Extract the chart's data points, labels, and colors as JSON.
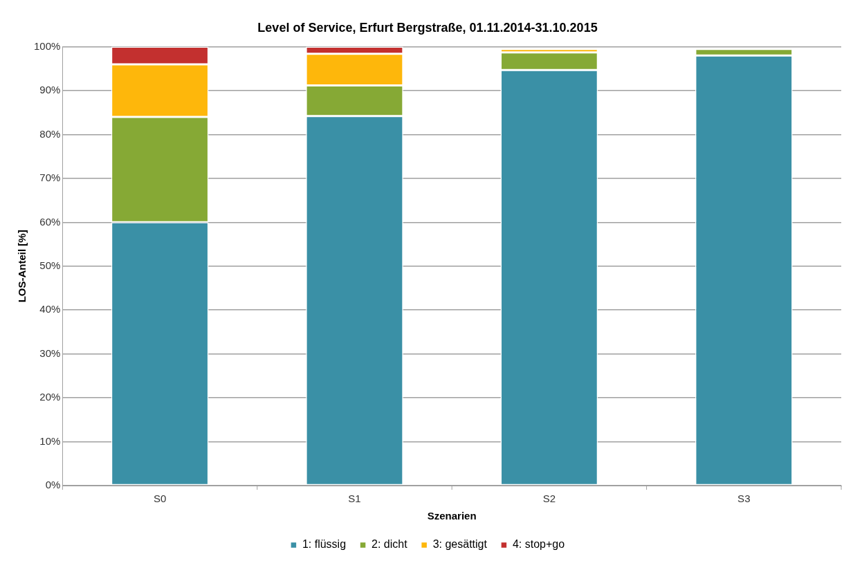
{
  "chart_data": {
    "type": "bar",
    "title": "Level of Service, Erfurt Bergstraße, 01.11.2014-31.10.2015",
    "xlabel": "Szenarien",
    "ylabel": "LOS-Anteil [%]",
    "categories": [
      "S0",
      "S1",
      "S2",
      "S3"
    ],
    "stacked": true,
    "series": [
      {
        "name": "1: flüssig",
        "color": "#3a90a6",
        "values": [
          60,
          84.2,
          94.7,
          98
        ]
      },
      {
        "name": "2: dicht",
        "color": "#86a935",
        "values": [
          24,
          7,
          4,
          1.5
        ]
      },
      {
        "name": "3: gesättigt",
        "color": "#feb70b",
        "values": [
          12,
          7.2,
          0.8,
          0
        ]
      },
      {
        "name": "4: stop+go",
        "color": "#c3302f",
        "values": [
          4,
          1.6,
          0,
          0
        ]
      }
    ],
    "ylim": [
      0,
      100
    ],
    "yticks": [
      {
        "value": 0,
        "label": "0%"
      },
      {
        "value": 10,
        "label": "10%"
      },
      {
        "value": 20,
        "label": "20%"
      },
      {
        "value": 30,
        "label": "30%"
      },
      {
        "value": 40,
        "label": "40%"
      },
      {
        "value": 50,
        "label": "50%"
      },
      {
        "value": 60,
        "label": "60%"
      },
      {
        "value": 70,
        "label": "70%"
      },
      {
        "value": 80,
        "label": "80%"
      },
      {
        "value": 90,
        "label": "90%"
      },
      {
        "value": 100,
        "label": "100%"
      }
    ],
    "grid": "y",
    "legend": "bottom"
  }
}
